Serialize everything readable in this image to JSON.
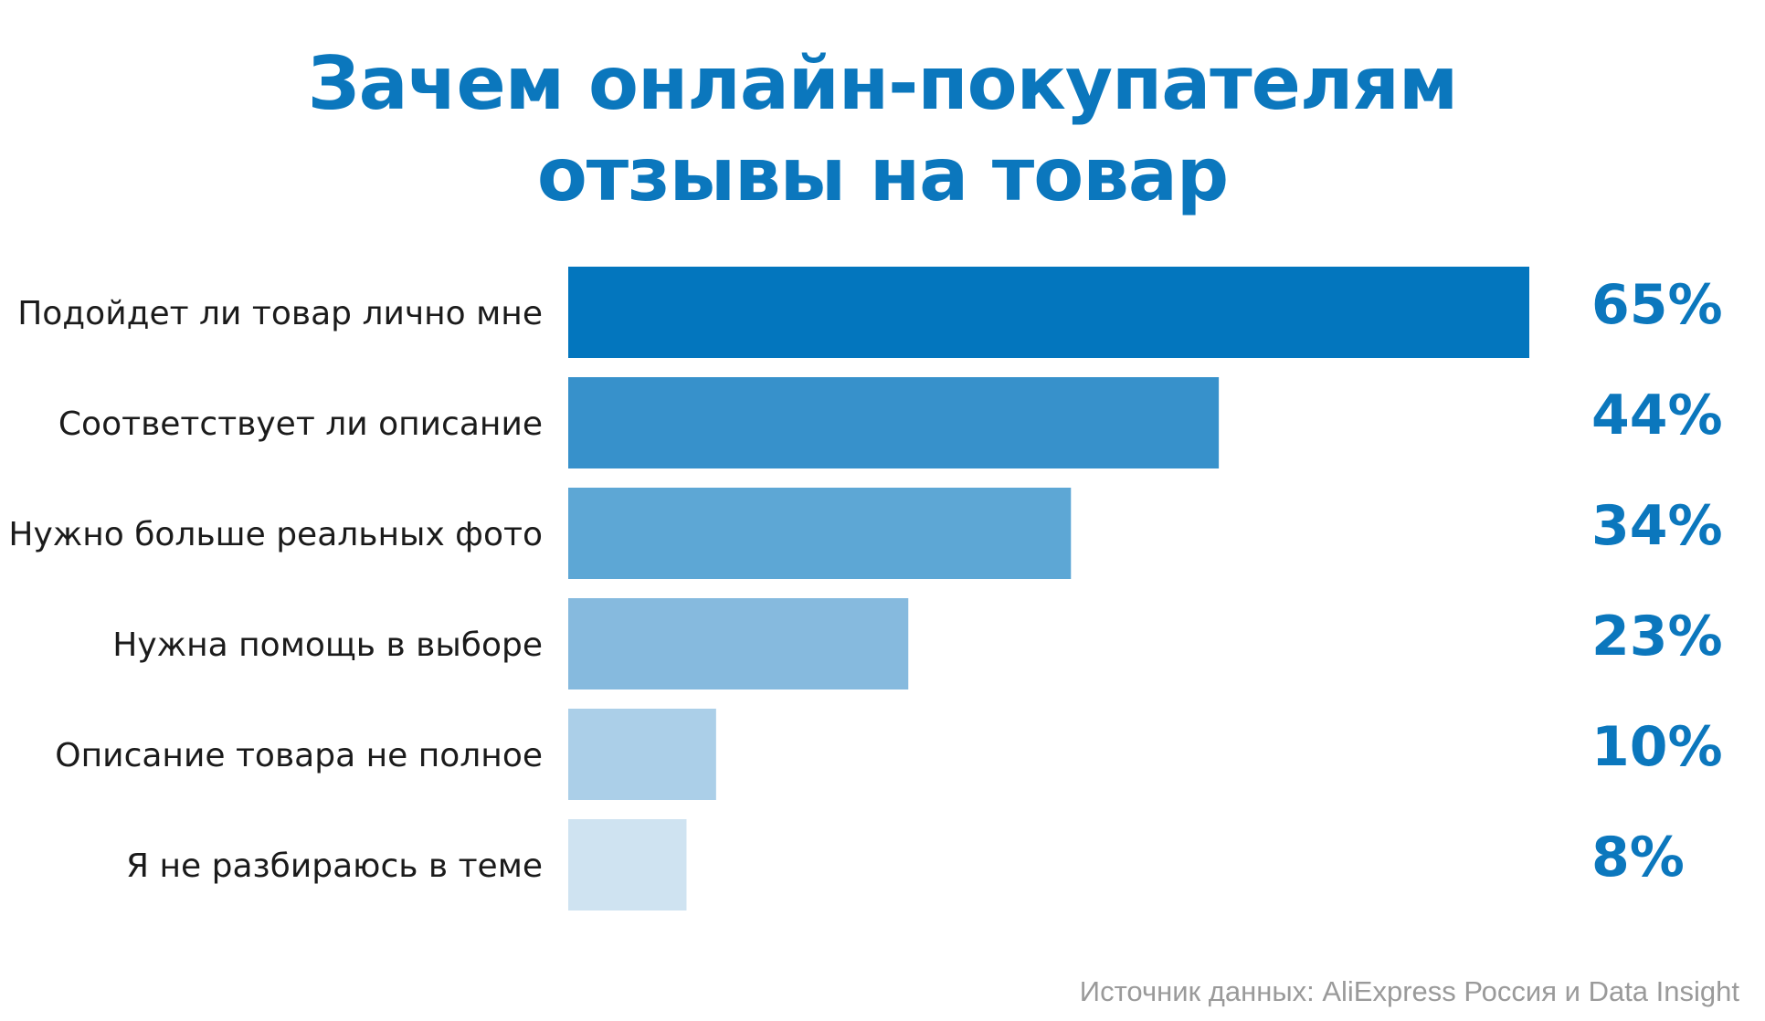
{
  "title": {
    "line1": "Зачем онлайн-покупателям",
    "line2": "отзывы на товар"
  },
  "source": "Источник данных: AliExpress Россия и Data Insight",
  "colors": {
    "title": "#0b77bd",
    "bars": [
      "#0376be",
      "#3791cb",
      "#5da7d5",
      "#86bade",
      "#abcfe8",
      "#cfe3f1"
    ]
  },
  "chart_data": {
    "type": "bar",
    "orientation": "horizontal",
    "title": "Зачем онлайн-покупателям отзывы на товар",
    "categories": [
      "Подойдет ли товар лично мне",
      "Соответствует ли описание",
      "Нужно больше реальных фото",
      "Нужна помощь в выборе",
      "Описание товара не полное",
      "Я не разбираюсь в теме"
    ],
    "values": [
      65,
      44,
      34,
      23,
      10,
      8
    ],
    "value_labels": [
      "65%",
      "44%",
      "34%",
      "23%",
      "10%",
      "8%"
    ],
    "unit": "%",
    "xlim": [
      0,
      65
    ],
    "grid": false,
    "legend": "none"
  }
}
